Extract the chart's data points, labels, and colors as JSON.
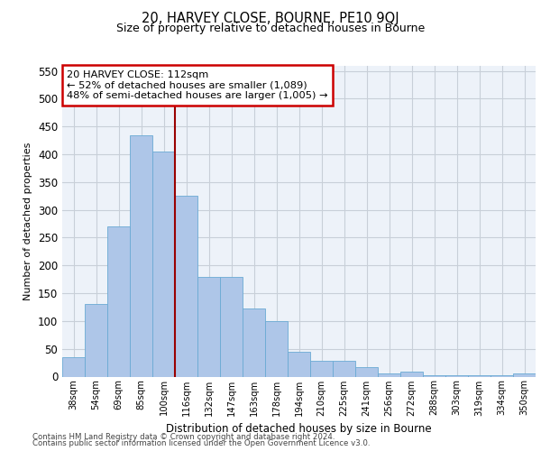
{
  "title1": "20, HARVEY CLOSE, BOURNE, PE10 9QJ",
  "title2": "Size of property relative to detached houses in Bourne",
  "xlabel": "Distribution of detached houses by size in Bourne",
  "ylabel": "Number of detached properties",
  "categories": [
    "38sqm",
    "54sqm",
    "69sqm",
    "85sqm",
    "100sqm",
    "116sqm",
    "132sqm",
    "147sqm",
    "163sqm",
    "178sqm",
    "194sqm",
    "210sqm",
    "225sqm",
    "241sqm",
    "256sqm",
    "272sqm",
    "288sqm",
    "303sqm",
    "319sqm",
    "334sqm",
    "350sqm"
  ],
  "values": [
    35,
    130,
    270,
    435,
    405,
    325,
    180,
    180,
    122,
    100,
    45,
    28,
    28,
    17,
    5,
    9,
    3,
    3,
    3,
    3,
    6
  ],
  "bar_color": "#aec6e8",
  "bar_edge_color": "#6aaad4",
  "vline_x_idx": 5,
  "vline_color": "#990000",
  "annotation_text": "20 HARVEY CLOSE: 112sqm\n← 52% of detached houses are smaller (1,089)\n48% of semi-detached houses are larger (1,005) →",
  "annotation_box_color": "#ffffff",
  "annotation_box_edge": "#cc0000",
  "ylim": [
    0,
    560
  ],
  "yticks": [
    0,
    50,
    100,
    150,
    200,
    250,
    300,
    350,
    400,
    450,
    500,
    550
  ],
  "grid_color": "#c8cfd8",
  "background_color": "#edf2f9",
  "footer1": "Contains HM Land Registry data © Crown copyright and database right 2024.",
  "footer2": "Contains public sector information licensed under the Open Government Licence v3.0."
}
